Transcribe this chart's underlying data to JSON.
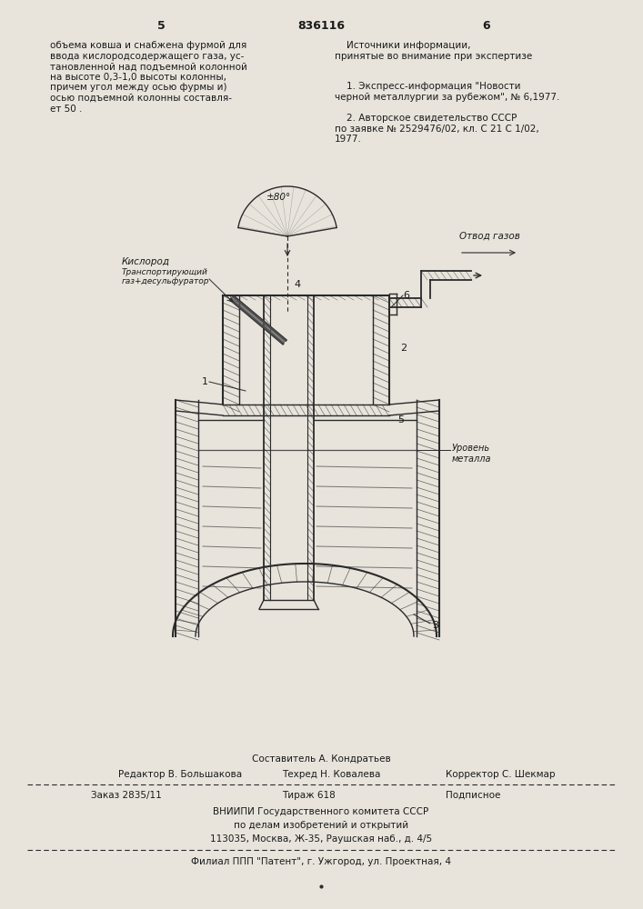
{
  "page_number_left": "5",
  "patent_number": "836116",
  "page_number_right": "6",
  "text_left": "объема ковша и снабжена фурмой для\nввода кислородсодержащего газа, ус-\nтановленной над подъемной колонной\nна высоте 0,3-1,0 высоты колонны,\nпричем угол между осью фурмы и)\nосью подъемной колонны составля-\nет 50 .",
  "text_right_title": "    Источники информации,\nпринятые во внимание при экспертизе",
  "text_right_1": "    1. Экспресс-информация \"Новости\nчерной металлургии за рубежом\", № 6,1977.",
  "text_right_2": "    2. Авторское свидетельство СССР\nпо заявке № 2529476/02, кл. С 21 С 1/02,\n1977.",
  "label_oxygen": "Кислород",
  "label_transport": "Транспортирующий\nгаз+десульфуратор",
  "label_angle": "±80°",
  "label_gas_out": "Отвод газов",
  "label_level_1": "Уровень",
  "label_level_2": "металла",
  "label_1": "1",
  "label_2": "2",
  "label_3": "3",
  "label_4": "4",
  "label_5": "5",
  "label_6": "6",
  "footer_line1": "Составитель А. Кондратьев",
  "footer_line2_a": "Редактор В. Большакова",
  "footer_line2_b": "Техред Н. Ковалева",
  "footer_line2_c": "Корректор С. Шекмар",
  "footer_line3_a": "Заказ 2835/11",
  "footer_line3_b": "Тираж 618",
  "footer_line3_c": "Подписное",
  "footer_line4": "ВНИИПИ Государственного комитета СССР",
  "footer_line5": "по делам изобретений и открытий",
  "footer_line6": "113035, Москва, Ж-35, Раушская наб., д. 4/5",
  "footer_line7": "Филиал ППП \"Патент\", г. Ужгород, ул. Проектная, 4",
  "bg_color": "#e8e4dc",
  "line_color": "#2a2a2a",
  "text_color": "#1a1a1a"
}
